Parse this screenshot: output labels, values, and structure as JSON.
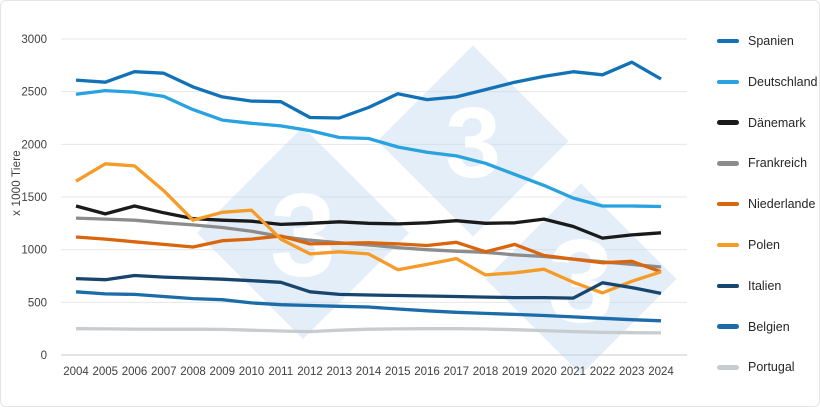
{
  "chart_data": {
    "type": "line",
    "title": "",
    "ylabel": "x 1000 Tiere",
    "xlabel": "",
    "ylim": [
      0,
      3000
    ],
    "yticks": [
      0,
      500,
      1000,
      1500,
      2000,
      2500,
      3000
    ],
    "grid": "horizontal",
    "legend_position": "right",
    "x": [
      2004,
      2005,
      2006,
      2007,
      2008,
      2009,
      2010,
      2011,
      2012,
      2013,
      2014,
      2015,
      2016,
      2017,
      2018,
      2019,
      2020,
      2021,
      2022,
      2023,
      2024
    ],
    "series": [
      {
        "name": "Spanien",
        "color": "#1272b6",
        "values": [
          2610,
          2590,
          2690,
          2675,
          2545,
          2450,
          2410,
          2405,
          2255,
          2250,
          2350,
          2480,
          2425,
          2450,
          2520,
          2590,
          2645,
          2690,
          2660,
          2780,
          2620
        ]
      },
      {
        "name": "Deutschland",
        "color": "#29a2e0",
        "values": [
          2475,
          2510,
          2495,
          2455,
          2330,
          2230,
          2200,
          2175,
          2130,
          2065,
          2055,
          1975,
          1925,
          1890,
          1820,
          1715,
          1610,
          1490,
          1415,
          1415,
          1410
        ]
      },
      {
        "name": "Dänemark",
        "color": "#1a1a1a",
        "values": [
          1415,
          1340,
          1415,
          1350,
          1295,
          1280,
          1270,
          1240,
          1250,
          1265,
          1250,
          1245,
          1255,
          1275,
          1250,
          1255,
          1290,
          1220,
          1110,
          1140,
          1160
        ]
      },
      {
        "name": "Frankreich",
        "color": "#8c8c8c",
        "values": [
          1300,
          1290,
          1280,
          1255,
          1235,
          1210,
          1175,
          1125,
          1090,
          1065,
          1045,
          1020,
          1000,
          985,
          975,
          950,
          935,
          910,
          885,
          860,
          835
        ]
      },
      {
        "name": "Niederlande",
        "color": "#d9650d",
        "values": [
          1120,
          1100,
          1075,
          1050,
          1025,
          1085,
          1100,
          1130,
          1055,
          1060,
          1065,
          1055,
          1040,
          1070,
          980,
          1050,
          945,
          910,
          875,
          890,
          790
        ]
      },
      {
        "name": "Polen",
        "color": "#f59b28",
        "values": [
          1650,
          1815,
          1795,
          1560,
          1280,
          1355,
          1375,
          1100,
          960,
          980,
          960,
          810,
          860,
          915,
          760,
          780,
          815,
          690,
          590,
          700,
          790
        ]
      },
      {
        "name": "Italien",
        "color": "#17456e",
        "values": [
          725,
          715,
          755,
          740,
          730,
          720,
          705,
          690,
          600,
          575,
          570,
          565,
          560,
          555,
          550,
          545,
          545,
          540,
          685,
          640,
          585
        ]
      },
      {
        "name": "Belgien",
        "color": "#1b6ca8",
        "values": [
          600,
          580,
          575,
          555,
          535,
          525,
          495,
          478,
          470,
          462,
          456,
          437,
          420,
          405,
          395,
          385,
          375,
          362,
          348,
          335,
          325
        ]
      },
      {
        "name": "Portugal",
        "color": "#c8cccf",
        "values": [
          250,
          248,
          246,
          245,
          245,
          243,
          235,
          228,
          222,
          235,
          245,
          248,
          250,
          250,
          247,
          240,
          232,
          222,
          215,
          212,
          210
        ]
      }
    ],
    "watermark": {
      "glyph": "3",
      "diamond_color": "#bdd7ee",
      "glyph_color": "#ffffff"
    },
    "axis_text_color": "#404040",
    "gridline_color": "#e7e7e7",
    "axis_line_color": "#c9c9c9"
  }
}
